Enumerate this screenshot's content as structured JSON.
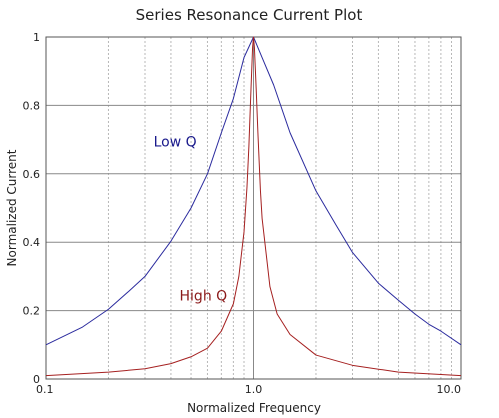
{
  "chart_data": {
    "type": "line",
    "title": "Series Resonance Current Plot",
    "xlabel": "Normalized Frequency",
    "ylabel": "Normalized Current",
    "x_scale": "log",
    "xlim": [
      0.1,
      10.0
    ],
    "ylim": [
      0,
      1
    ],
    "x_ticks": [
      "0.1",
      "1.0",
      "10.0"
    ],
    "y_ticks": [
      "0",
      "0.2",
      "0.4",
      "0.6",
      "0.8",
      "1"
    ],
    "grid": true,
    "series": [
      {
        "name": "Low Q",
        "color": "#2b2b9e",
        "x": [
          0.1,
          0.15,
          0.2,
          0.25,
          0.3,
          0.4,
          0.5,
          0.6,
          0.7,
          0.8,
          0.9,
          1.0,
          1.1,
          1.25,
          1.5,
          2.0,
          2.5,
          3.0,
          4.0,
          5.0,
          6.0,
          7.0,
          8.0,
          10.0
        ],
        "values": [
          0.1,
          0.152,
          0.204,
          0.256,
          0.3,
          0.403,
          0.5,
          0.6,
          0.72,
          0.82,
          0.94,
          1.0,
          0.94,
          0.86,
          0.72,
          0.55,
          0.45,
          0.37,
          0.28,
          0.23,
          0.19,
          0.16,
          0.14,
          0.1
        ]
      },
      {
        "name": "High Q",
        "color": "#a52020",
        "x": [
          0.1,
          0.2,
          0.3,
          0.4,
          0.5,
          0.6,
          0.7,
          0.8,
          0.85,
          0.9,
          0.93,
          0.95,
          0.97,
          0.98,
          0.99,
          1.0,
          1.01,
          1.02,
          1.03,
          1.05,
          1.08,
          1.1,
          1.2,
          1.3,
          1.5,
          2.0,
          3.0,
          5.0,
          10.0
        ],
        "values": [
          0.01,
          0.02,
          0.03,
          0.045,
          0.065,
          0.09,
          0.14,
          0.22,
          0.3,
          0.43,
          0.56,
          0.68,
          0.83,
          0.9,
          0.97,
          1.0,
          0.97,
          0.91,
          0.85,
          0.72,
          0.55,
          0.47,
          0.27,
          0.19,
          0.13,
          0.07,
          0.04,
          0.02,
          0.01
        ]
      }
    ],
    "annotations": [
      {
        "text": "Low Q",
        "color": "#1a1a8c"
      },
      {
        "text": "High Q",
        "color": "#8b1a1a"
      }
    ]
  }
}
